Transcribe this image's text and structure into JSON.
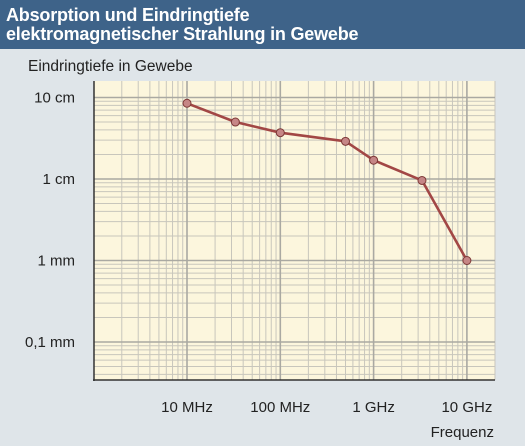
{
  "header": {
    "title_line1": "Absorption und Eindringtiefe",
    "title_line2": "elektromagnetischer Strahlung in Gewebe"
  },
  "colors": {
    "header_bg": "#3e6389",
    "page_bg": "#dfe5e9",
    "plot_bg": "#fcf6dd",
    "line": "#a24745",
    "marker": "#c68686",
    "grid": "#c8c6bc"
  },
  "chart_data": {
    "type": "line",
    "ylabel": "Eindringtiefe in Gewebe",
    "xlabel": "Frequenz",
    "x_scale": "log",
    "y_scale": "log",
    "x_unit": "Hz",
    "y_unit": "m",
    "xlim": [
      1000000,
      20000000000
    ],
    "ylim": [
      1e-05,
      0.2
    ],
    "x_ticks": [
      {
        "value": 10000000,
        "label": "10 MHz"
      },
      {
        "value": 100000000,
        "label": "100 MHz"
      },
      {
        "value": 1000000000,
        "label": "1 GHz"
      },
      {
        "value": 10000000000,
        "label": "10 GHz"
      }
    ],
    "y_ticks": [
      {
        "value": 0.1,
        "label": "10 cm"
      },
      {
        "value": 0.01,
        "label": "1 cm"
      },
      {
        "value": 0.001,
        "label": "1 mm"
      },
      {
        "value": 0.0001,
        "label": "0,1 mm"
      }
    ],
    "grid": true,
    "series": [
      {
        "x": [
          10000000,
          33000000,
          100000000,
          500000000,
          1000000000,
          3300000000,
          10000000000
        ],
        "y": [
          0.085,
          0.05,
          0.037,
          0.029,
          0.017,
          0.0096,
          0.001
        ]
      }
    ]
  }
}
